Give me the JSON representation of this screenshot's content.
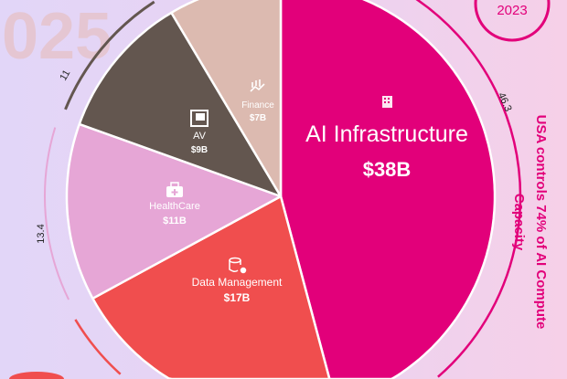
{
  "watermark": "025",
  "badge": {
    "year": "2023"
  },
  "side_note": {
    "line1": "USA controls 74% of AI Compute",
    "line2": "Capacity"
  },
  "chart_data": {
    "type": "pie",
    "start": "top",
    "direction": "clockwise",
    "slices": [
      {
        "label": "AI Infrastructure",
        "value_label": "$38B",
        "value": 38,
        "color": "#e2007a",
        "icon": "building-icon"
      },
      {
        "label": "Data Management",
        "value_label": "$17B",
        "value": 17,
        "color": "#f04e4e",
        "icon": "database-gear-icon"
      },
      {
        "label": "HealthCare",
        "value_label": "$11B",
        "value": 11,
        "color": "#e6a6d6",
        "icon": "medical-bag-icon"
      },
      {
        "label": "AV",
        "value_label": "$9B",
        "value": 9,
        "color": "#63564f",
        "icon": "media-icon"
      },
      {
        "label": "Finance",
        "value_label": "$7B",
        "value": 7,
        "color": "#dcbab0",
        "icon": "chart-growth-icon"
      }
    ],
    "outer_arc_labels": [
      {
        "slice": "AI Infrastructure",
        "text": "46.3",
        "color": "#e2007a"
      },
      {
        "slice": "HealthCare",
        "text": "13.4",
        "color": "#e6a6d6"
      },
      {
        "slice": "AV",
        "text": "11",
        "color": "#63564f"
      },
      {
        "slice": "Data Management",
        "text": "",
        "color": "#f04e4e"
      }
    ]
  }
}
